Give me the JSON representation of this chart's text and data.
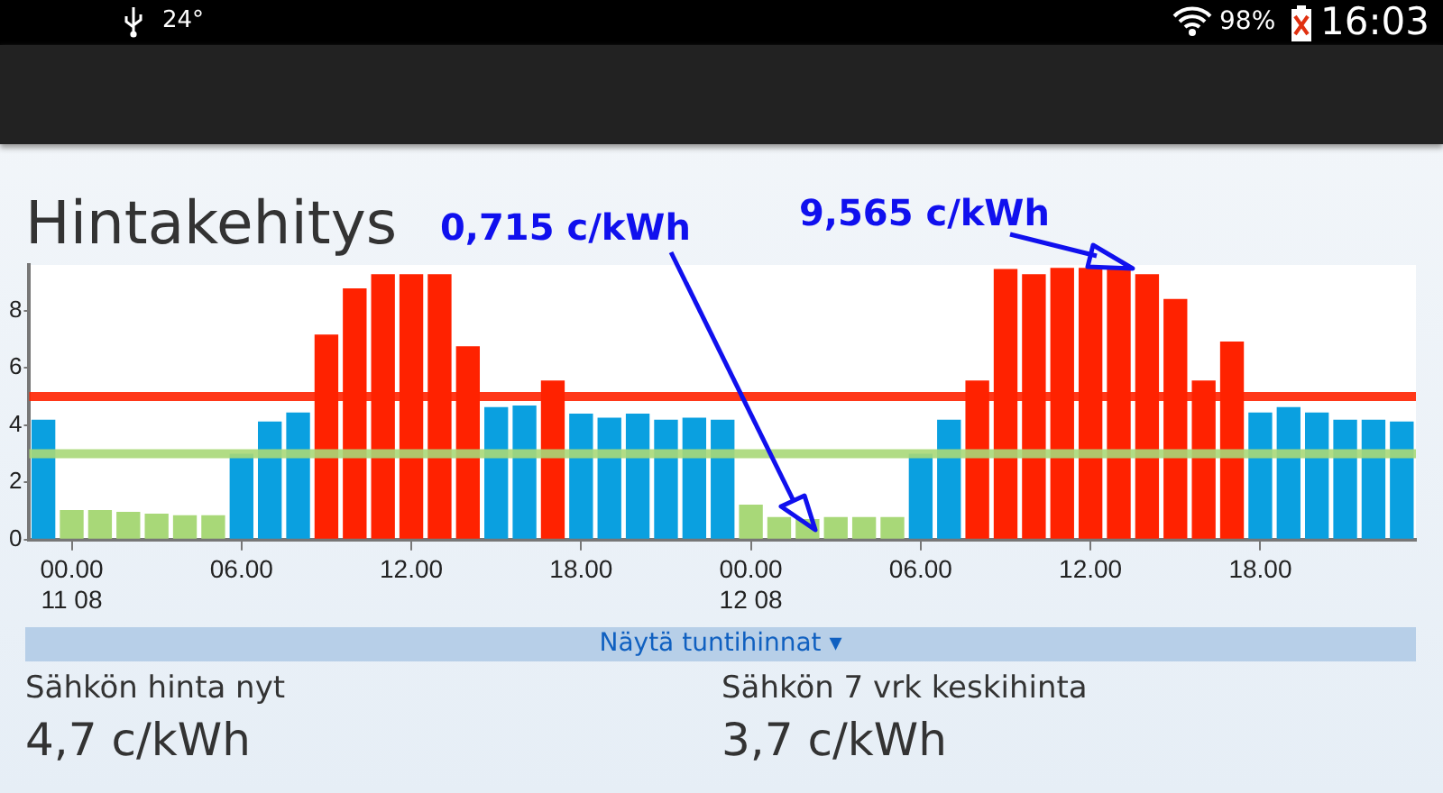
{
  "chart_data": {
    "type": "bar",
    "title": "Hintakehitys",
    "categories": [
      null,
      "00.00\n11 08",
      null,
      null,
      null,
      null,
      null,
      "06.00",
      null,
      null,
      null,
      null,
      null,
      "12.00",
      null,
      null,
      null,
      null,
      null,
      "18.00",
      null,
      null,
      null,
      null,
      null,
      "00.00\n12 08",
      null,
      null,
      null,
      null,
      null,
      "06.00",
      null,
      null,
      null,
      null,
      null,
      "12.00",
      null,
      null,
      null,
      null,
      null,
      "18.00",
      null,
      null,
      null,
      null,
      null
    ],
    "values": [
      4.19,
      1.03,
      1.03,
      0.97,
      0.91,
      0.85,
      0.85,
      3.0,
      4.13,
      4.44,
      7.17,
      8.78,
      9.28,
      9.28,
      9.28,
      6.76,
      4.63,
      4.69,
      5.56,
      4.4,
      4.26,
      4.4,
      4.19,
      4.26,
      4.19,
      1.22,
      0.79,
      0.715,
      0.79,
      0.79,
      0.79,
      3.0,
      4.19,
      5.56,
      9.46,
      9.28,
      9.5,
      9.5,
      9.565,
      9.28,
      8.41,
      5.56,
      6.92,
      4.44,
      4.63,
      4.44,
      4.19,
      4.19,
      4.13
    ],
    "colors": [
      "#0aa0e0",
      "#a8d878",
      "#a8d878",
      "#a8d878",
      "#a8d878",
      "#a8d878",
      "#a8d878",
      "#0aa0e0",
      "#0aa0e0",
      "#0aa0e0",
      "#ff2200",
      "#ff2200",
      "#ff2200",
      "#ff2200",
      "#ff2200",
      "#ff2200",
      "#0aa0e0",
      "#0aa0e0",
      "#ff2200",
      "#0aa0e0",
      "#0aa0e0",
      "#0aa0e0",
      "#0aa0e0",
      "#0aa0e0",
      "#0aa0e0",
      "#a8d878",
      "#a8d878",
      "#a8d878",
      "#a8d878",
      "#a8d878",
      "#a8d878",
      "#0aa0e0",
      "#0aa0e0",
      "#ff2200",
      "#ff2200",
      "#ff2200",
      "#ff2200",
      "#ff2200",
      "#ff2200",
      "#ff2200",
      "#ff2200",
      "#ff2200",
      "#ff2200",
      "#0aa0e0",
      "#0aa0e0",
      "#0aa0e0",
      "#0aa0e0",
      "#0aa0e0",
      "#0aa0e0"
    ],
    "ylim": [
      0,
      9.6
    ],
    "yticks": [
      0,
      2,
      4,
      6,
      8
    ],
    "grid": false,
    "legend": false,
    "ref_lines": [
      {
        "axis": "y",
        "value": 5.0,
        "color": "#ff2200"
      },
      {
        "axis": "y",
        "value": 3.0,
        "color": "#a8d878"
      }
    ],
    "annotations": [
      "0,715 c/kWh",
      "9,565 c/kWh",
      "Näytä tuntihinnat ▾",
      "Sähkön hinta nyt",
      "4,7 c/kWh",
      "Sähkön 7 vrk keskihinta",
      "3,7 c/kWh",
      "24°",
      "98%",
      "16:03"
    ]
  }
}
